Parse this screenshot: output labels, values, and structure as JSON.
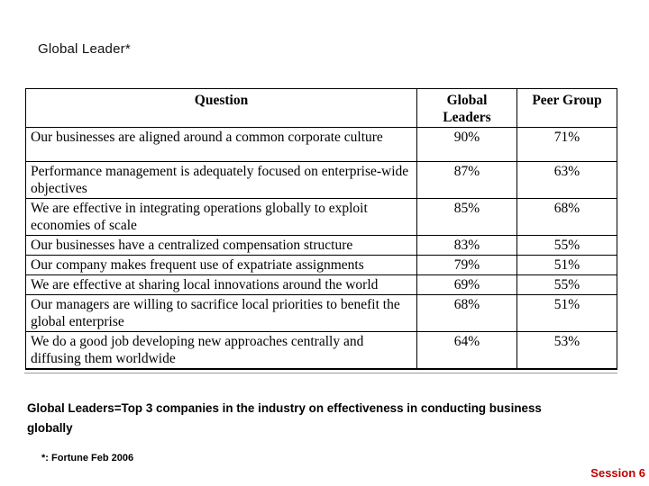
{
  "slide": {
    "title": "Global Leader*",
    "definition": "Global Leaders=Top 3 companies in the industry on effectiveness in conducting business globally",
    "footnote": "*: Fortune Feb 2006",
    "session_label": "Session 6"
  },
  "colors": {
    "background": "#FFFFFF",
    "text": "#000000",
    "table_border": "#000000",
    "session_red": "#C00000"
  },
  "table": {
    "columns": [
      "Question",
      "Global Leaders",
      "Peer Group"
    ],
    "rows": [
      {
        "question": "Our businesses are aligned around a common corporate culture",
        "global_leaders": "90%",
        "peer_group": "71%"
      },
      {
        "question": "Performance management is adequately focused on enterprise-wide objectives",
        "global_leaders": "87%",
        "peer_group": "63%"
      },
      {
        "question": "We are effective in integrating operations globally to exploit economies of scale",
        "global_leaders": "85%",
        "peer_group": "68%"
      },
      {
        "question": "Our businesses have a centralized compensation structure",
        "global_leaders": "83%",
        "peer_group": "55%"
      },
      {
        "question": "Our company makes frequent use of expatriate assignments",
        "global_leaders": "79%",
        "peer_group": "51%"
      },
      {
        "question": "We are effective at sharing local innovations around the world",
        "global_leaders": "69%",
        "peer_group": "55%"
      },
      {
        "question": "Our managers are willing to sacrifice local priorities to benefit the global enterprise",
        "global_leaders": "68%",
        "peer_group": "51%"
      },
      {
        "question": "We do a good job developing new approaches centrally and diffusing them worldwide",
        "global_leaders": "64%",
        "peer_group": "53%"
      }
    ]
  },
  "chart_data": {
    "type": "table",
    "title": "Global Leader*",
    "categories": [
      "Our businesses are aligned around a common corporate culture",
      "Performance management is adequately focused on enterprise-wide objectives",
      "We are effective in integrating operations globally to exploit economies of scale",
      "Our businesses have a centralized compensation structure",
      "Our company makes frequent use of expatriate assignments",
      "We are effective at sharing local innovations around the world",
      "Our managers are willing to sacrifice local priorities to benefit the global enterprise",
      "We do a good job developing new approaches centrally and diffusing them worldwide"
    ],
    "series": [
      {
        "name": "Global Leaders",
        "values": [
          90,
          87,
          85,
          83,
          79,
          69,
          68,
          64
        ]
      },
      {
        "name": "Peer Group",
        "values": [
          71,
          63,
          68,
          55,
          51,
          55,
          51,
          53
        ]
      }
    ],
    "unit": "%"
  }
}
